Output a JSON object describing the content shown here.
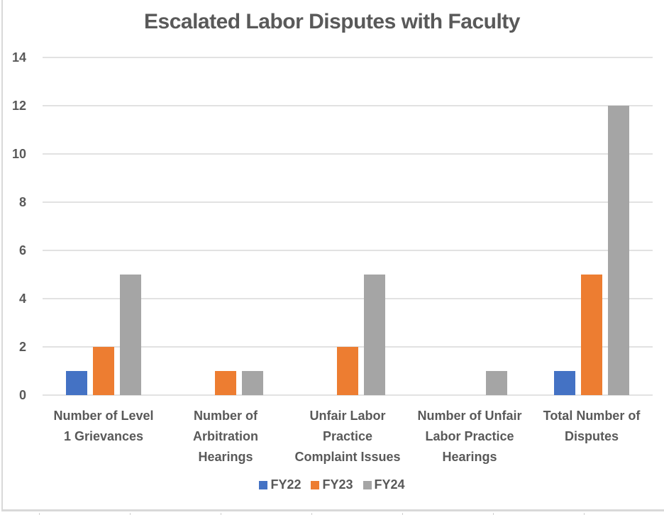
{
  "chart_data": {
    "type": "bar",
    "title": "Escalated Labor Disputes with Faculty",
    "xlabel": "",
    "ylabel": "",
    "ylim": [
      0,
      14
    ],
    "yticks": [
      0,
      2,
      4,
      6,
      8,
      10,
      12,
      14
    ],
    "grid": true,
    "legend_position": "bottom",
    "categories": [
      [
        "Number of Level",
        "1 Grievances"
      ],
      [
        "Number of",
        "Arbitration",
        "Hearings"
      ],
      [
        "Unfair Labor",
        "Practice",
        "Complaint Issues"
      ],
      [
        "Number of Unfair",
        "Labor Practice",
        "Hearings"
      ],
      [
        "Total Number of",
        "Disputes"
      ]
    ],
    "category_names": [
      "Number of Level 1 Grievances",
      "Number of Arbitration Hearings",
      "Unfair Labor Practice Complaint Issues",
      "Number of Unfair Labor Practice Hearings",
      "Total Number of Disputes"
    ],
    "series": [
      {
        "name": "FY22",
        "color": "#4472c4",
        "values": [
          1,
          0,
          0,
          0,
          1
        ]
      },
      {
        "name": "FY23",
        "color": "#ed7d31",
        "values": [
          2,
          1,
          2,
          0,
          5
        ]
      },
      {
        "name": "FY24",
        "color": "#a5a5a5",
        "values": [
          5,
          1,
          5,
          1,
          12
        ]
      }
    ]
  }
}
